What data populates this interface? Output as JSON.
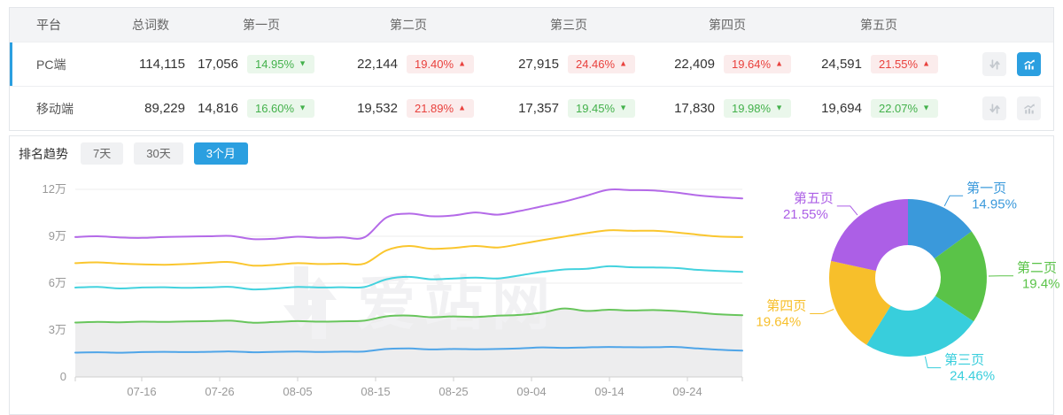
{
  "colors": {
    "accent_blue": "#2b9fe0",
    "up_text": "#e9413d",
    "up_bg": "#fbecec",
    "down_text": "#43b14b",
    "down_bg": "#eaf7eb",
    "gridline": "#ececee",
    "axis": "#cfcfcf",
    "tick_label": "#999999",
    "area_fill": "#ededee",
    "watermark": "#f1f1f3"
  },
  "glyphs": {
    "up_triangle": "▲",
    "down_triangle": "▼"
  },
  "table": {
    "headers": [
      "平台",
      "总词数",
      "第一页",
      "第二页",
      "第三页",
      "第四页",
      "第五页"
    ],
    "rows": [
      {
        "platform": "PC端",
        "total": "114,115",
        "selected": true,
        "pages": [
          {
            "value": "17,056",
            "pct": "14.95%",
            "dir": "down"
          },
          {
            "value": "22,144",
            "pct": "19.40%",
            "dir": "up"
          },
          {
            "value": "27,915",
            "pct": "24.46%",
            "dir": "up"
          },
          {
            "value": "22,409",
            "pct": "19.64%",
            "dir": "up"
          },
          {
            "value": "24,591",
            "pct": "21.55%",
            "dir": "up"
          }
        ],
        "sort_active": false,
        "chart_active": true
      },
      {
        "platform": "移动端",
        "total": "89,229",
        "selected": false,
        "pages": [
          {
            "value": "14,816",
            "pct": "16.60%",
            "dir": "down"
          },
          {
            "value": "19,532",
            "pct": "21.89%",
            "dir": "up"
          },
          {
            "value": "17,357",
            "pct": "19.45%",
            "dir": "down"
          },
          {
            "value": "17,830",
            "pct": "19.98%",
            "dir": "down"
          },
          {
            "value": "19,694",
            "pct": "22.07%",
            "dir": "down"
          }
        ],
        "sort_active": false,
        "chart_active": false
      }
    ]
  },
  "trend": {
    "label": "排名趋势",
    "tabs": [
      {
        "label": "7天",
        "active": false
      },
      {
        "label": "30天",
        "active": false
      },
      {
        "label": "3个月",
        "active": true
      }
    ]
  },
  "watermark_text": "爱站网",
  "chart_data": [
    {
      "type": "line",
      "title": "排名趋势（3个月）",
      "x_ticks": [
        "07-16",
        "07-26",
        "08-05",
        "08-15",
        "08-25",
        "09-04",
        "09-14",
        "09-24"
      ],
      "y_ticks": [
        "0",
        "3万",
        "6万",
        "9万",
        "12万"
      ],
      "unit": "万",
      "ylim": [
        0,
        120000
      ],
      "grid": true,
      "legend": "none",
      "series": [
        {
          "name": "第一页",
          "color": "#4fa5e8",
          "values_wan": [
            1.56,
            1.58,
            1.55,
            1.59,
            1.61,
            1.59,
            1.61,
            1.63,
            1.58,
            1.61,
            1.63,
            1.6,
            1.62,
            1.63,
            1.79,
            1.82,
            1.76,
            1.79,
            1.77,
            1.79,
            1.83,
            1.89,
            1.86,
            1.89,
            1.92,
            1.9,
            1.9,
            1.92,
            1.82,
            1.74,
            1.68
          ]
        },
        {
          "name": "第二页",
          "color": "#68c55c",
          "area": true,
          "values_wan": [
            3.48,
            3.52,
            3.5,
            3.54,
            3.52,
            3.55,
            3.57,
            3.6,
            3.47,
            3.52,
            3.57,
            3.54,
            3.56,
            3.6,
            3.88,
            3.93,
            3.82,
            3.87,
            3.84,
            3.92,
            3.97,
            4.12,
            4.38,
            4.22,
            4.3,
            4.25,
            4.28,
            4.22,
            4.12,
            4.0,
            3.95
          ]
        },
        {
          "name": "第三页",
          "color": "#43d2de",
          "values_wan": [
            5.72,
            5.76,
            5.66,
            5.72,
            5.74,
            5.7,
            5.73,
            5.76,
            5.6,
            5.66,
            5.76,
            5.72,
            5.74,
            5.75,
            6.25,
            6.4,
            6.25,
            6.3,
            6.35,
            6.3,
            6.5,
            6.72,
            6.88,
            6.92,
            7.08,
            7.02,
            7.0,
            6.97,
            6.85,
            6.78,
            6.72
          ]
        },
        {
          "name": "第四页",
          "color": "#fac62e",
          "values_wan": [
            7.28,
            7.33,
            7.25,
            7.2,
            7.18,
            7.22,
            7.3,
            7.35,
            7.12,
            7.18,
            7.28,
            7.22,
            7.25,
            7.25,
            8.1,
            8.38,
            8.2,
            8.25,
            8.38,
            8.28,
            8.5,
            8.75,
            8.98,
            9.2,
            9.38,
            9.35,
            9.35,
            9.25,
            9.1,
            8.98,
            8.95
          ]
        },
        {
          "name": "第五页",
          "color": "#b46ae8",
          "values_wan": [
            8.95,
            9.0,
            8.92,
            8.9,
            8.95,
            8.98,
            9.0,
            9.02,
            8.82,
            8.85,
            8.97,
            8.9,
            8.93,
            8.93,
            10.2,
            10.45,
            10.28,
            10.33,
            10.52,
            10.38,
            10.62,
            10.92,
            11.22,
            11.6,
            11.98,
            11.95,
            11.93,
            11.8,
            11.62,
            11.5,
            11.42
          ]
        }
      ]
    },
    {
      "type": "pie",
      "style": "donut",
      "slices": [
        {
          "label": "第一页",
          "pct_label": "14.95%",
          "value": 14.95,
          "color": "#3a99db"
        },
        {
          "label": "第二页",
          "pct_label": "19.4%",
          "value": 19.4,
          "color": "#5ac348"
        },
        {
          "label": "第三页",
          "pct_label": "24.46%",
          "value": 24.46,
          "color": "#38cedc"
        },
        {
          "label": "第四页",
          "pct_label": "19.64%",
          "value": 19.64,
          "color": "#f7bf2b"
        },
        {
          "label": "第五页",
          "pct_label": "21.55%",
          "value": 21.55,
          "color": "#ac5fe6"
        }
      ]
    }
  ]
}
